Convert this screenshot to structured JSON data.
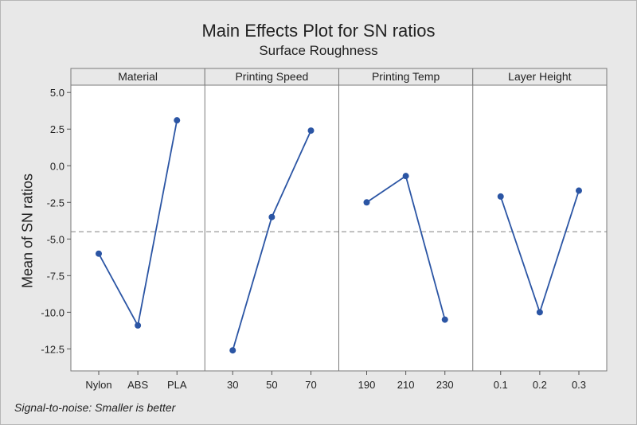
{
  "title": "Main Effects Plot for SN ratios",
  "subtitle": "Surface Roughness",
  "footnote": "Signal-to-noise: Smaller is better",
  "colors": {
    "series": "#2b55a4",
    "reference_line": "#9a9a9a",
    "panel_bg": "#ffffff",
    "header_bg": "#e8e8e8"
  },
  "chart_data": {
    "type": "line",
    "ylabel": "Mean of SN ratios",
    "ylim": [
      -14,
      5.5
    ],
    "yticks": [
      5.0,
      2.5,
      0.0,
      -2.5,
      -5.0,
      -7.5,
      -10.0,
      -12.5
    ],
    "ytick_labels": [
      "5.0",
      "2.5",
      "0.0",
      "-2.5",
      "-5.0",
      "-7.5",
      "-10.0",
      "-12.5"
    ],
    "reference_mean": -4.5,
    "panels": [
      {
        "name": "Material",
        "categories": [
          "Nylon",
          "ABS",
          "PLA"
        ],
        "values": [
          -6.0,
          -10.9,
          3.1
        ]
      },
      {
        "name": "Printing Speed",
        "categories": [
          "30",
          "50",
          "70"
        ],
        "values": [
          -12.6,
          -3.5,
          2.4
        ]
      },
      {
        "name": "Printing Temp",
        "categories": [
          "190",
          "210",
          "230"
        ],
        "values": [
          -2.5,
          -0.7,
          -10.5
        ]
      },
      {
        "name": "Layer Height",
        "categories": [
          "0.1",
          "0.2",
          "0.3"
        ],
        "values": [
          -2.1,
          -10.0,
          -1.7
        ]
      }
    ]
  }
}
